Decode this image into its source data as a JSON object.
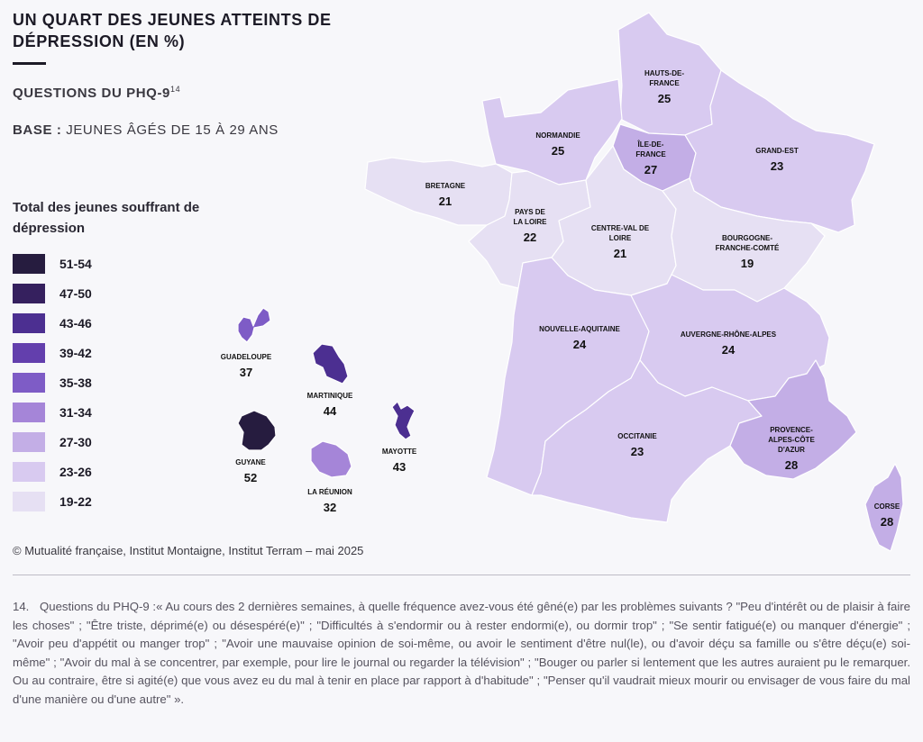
{
  "title": "UN QUART DES JEUNES ATTEINTS DE DÉPRESSION (EN %)",
  "subtitle_questions": "QUESTIONS DU PHQ-9",
  "subtitle_ref": "14",
  "base_label": "BASE :",
  "base_text": "JEUNES ÂGÉS DE 15 À 29 ANS",
  "legend": {
    "title": "Total des jeunes souffrant de dépression",
    "items": [
      {
        "label": "51-54",
        "color": "#261c3f"
      },
      {
        "label": "47-50",
        "color": "#35205e"
      },
      {
        "label": "43-46",
        "color": "#4c2f91"
      },
      {
        "label": "39-42",
        "color": "#633fad"
      },
      {
        "label": "35-38",
        "color": "#7e5cc6"
      },
      {
        "label": "31-34",
        "color": "#a585d8"
      },
      {
        "label": "27-30",
        "color": "#c3aee6"
      },
      {
        "label": "23-26",
        "color": "#d8caf0"
      },
      {
        "label": "19-22",
        "color": "#e6e0f3"
      }
    ]
  },
  "regions": [
    {
      "id": "hauts-de-france",
      "name": [
        "HAUTS-DE-",
        "FRANCE"
      ],
      "value": 25
    },
    {
      "id": "normandie",
      "name": [
        "NORMANDIE"
      ],
      "value": 25
    },
    {
      "id": "ile-de-france",
      "name": [
        "ÎLE-DE-",
        "FRANCE"
      ],
      "value": 27
    },
    {
      "id": "grand-est",
      "name": [
        "GRAND-EST"
      ],
      "value": 23
    },
    {
      "id": "bretagne",
      "name": [
        "BRETAGNE"
      ],
      "value": 21
    },
    {
      "id": "pays-de-la-loire",
      "name": [
        "PAYS DE",
        "LA LOIRE"
      ],
      "value": 22
    },
    {
      "id": "centre-val-de-loire",
      "name": [
        "CENTRE-VAL DE",
        "LOIRE"
      ],
      "value": 21
    },
    {
      "id": "bourgogne-franche-comte",
      "name": [
        "BOURGOGNE-",
        "FRANCHE-COMTÉ"
      ],
      "value": 19
    },
    {
      "id": "nouvelle-aquitaine",
      "name": [
        "NOUVELLE-AQUITAINE"
      ],
      "value": 24
    },
    {
      "id": "auvergne-rhone-alpes",
      "name": [
        "AUVERGNE-RHÔNE-ALPES"
      ],
      "value": 24
    },
    {
      "id": "occitanie",
      "name": [
        "OCCITANIE"
      ],
      "value": 23
    },
    {
      "id": "provence-alpes-cote-d-azur",
      "name": [
        "PROVENCE-",
        "ALPES-CÔTE",
        "D'AZUR"
      ],
      "value": 28
    },
    {
      "id": "corse",
      "name": [
        "CORSE"
      ],
      "value": 28
    },
    {
      "id": "guadeloupe",
      "name": [
        "GUADELOUPE"
      ],
      "value": 37
    },
    {
      "id": "martinique",
      "name": [
        "MARTINIQUE"
      ],
      "value": 44
    },
    {
      "id": "guyane",
      "name": [
        "GUYANE"
      ],
      "value": 52
    },
    {
      "id": "la-reunion",
      "name": [
        "LA RÉUNION"
      ],
      "value": 32
    },
    {
      "id": "mayotte",
      "name": [
        "MAYOTTE"
      ],
      "value": 43
    }
  ],
  "source": "© Mutualité française, Institut Montaigne, Institut Terram – mai 2025",
  "footnote_number": "14.",
  "footnote_text": "Questions du PHQ-9 :« Au cours des 2 dernières semaines, à quelle fréquence avez-vous été gêné(e) par les problèmes suivants ? \"Peu d'intérêt ou de plaisir à faire les choses\" ; \"Être triste, déprimé(e) ou désespéré(e)\" ; \"Difficultés à s'endormir ou à rester endormi(e), ou dormir trop\" ; \"Se sentir fatigué(e) ou manquer d'énergie\" ; \"Avoir peu d'appétit ou manger trop\" ; \"Avoir une mauvaise opinion de soi-même, ou avoir le sentiment d'être nul(le), ou d'avoir déçu sa famille ou s'être déçu(e) soi-même\" ; \"Avoir du mal à se concentrer, par exemple, pour lire le journal ou regarder la télévision\" ; \"Bouger ou parler si lentement que les autres auraient pu le remarquer. Ou au contraire, être si agité(e) que vous avez eu du mal à tenir en place par rapport à d'habitude\" ; \"Penser qu'il vaudrait mieux mourir ou envisager de vous faire du mal d'une manière ou d'une autre\" »."
}
